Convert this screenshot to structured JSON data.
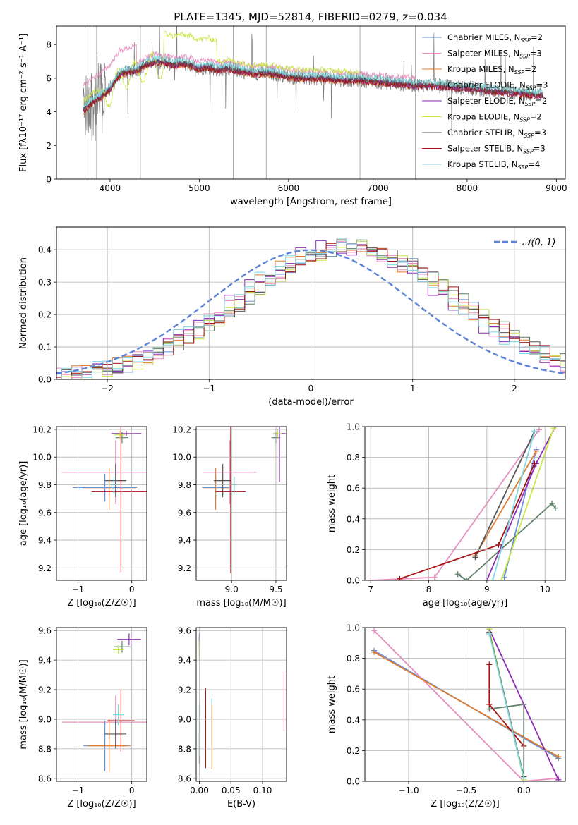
{
  "title": "PLATE=1345, MJD=52814, FIBERID=0279, z=0.034",
  "series_colors": {
    "Chabrier MILES": "#6b8fd6",
    "Salpeter MILES": "#e88fc0",
    "Kroupa MILES": "#e07a2c",
    "Chabrier ELODIE": "#5f7f66",
    "Salpeter ELODIE": "#8e2bb3",
    "Kroupa ELODIE": "#c9e84a",
    "Chabrier STELIB": "#555555",
    "Salpeter STELIB": "#a31515",
    "Kroupa STELIB": "#7dd8e0"
  },
  "chart_data": [
    {
      "id": "spectrum",
      "type": "line",
      "title": "PLATE=1345, MJD=52814, FIBERID=0279, z=0.034",
      "xlabel": "wavelength [Angstrom, rest frame]",
      "ylabel": "Flux [fλ10⁻¹⁷ erg cm⁻² s⁻¹ A⁻¹]",
      "xlim": [
        3400,
        9100
      ],
      "ylim": [
        0,
        9.1
      ],
      "xticks": [
        "4000",
        "5000",
        "6000",
        "7000",
        "8000",
        "9000"
      ],
      "yticks": [
        "0",
        "2",
        "4",
        "6",
        "8"
      ],
      "xtick_values": [
        4000,
        5000,
        6000,
        7000,
        8000,
        9000
      ],
      "ytick_values": [
        0,
        2,
        4,
        6,
        8
      ],
      "legend": {
        "placement": "top-right",
        "entries": [
          {
            "name": "Chabrier MILES",
            "ssp": "2"
          },
          {
            "name": "Salpeter MILES",
            "ssp": "3"
          },
          {
            "name": "Kroupa MILES",
            "ssp": "2"
          },
          {
            "name": "Chabrier ELODIE",
            "ssp": "3"
          },
          {
            "name": "Salpeter ELODIE",
            "ssp": "2"
          },
          {
            "name": "Kroupa ELODIE",
            "ssp": "2"
          },
          {
            "name": "Chabrier STELIB",
            "ssp": "3"
          },
          {
            "name": "Salpeter STELIB",
            "ssp": "3"
          },
          {
            "name": "Kroupa STELIB",
            "ssp": "4"
          }
        ],
        "ssp_prefix": "N",
        "ssp_sub": "SSP"
      },
      "continuum": [
        [
          3700,
          4.1
        ],
        [
          3800,
          4.6
        ],
        [
          3900,
          4.9
        ],
        [
          4000,
          5.4
        ],
        [
          4100,
          6.2
        ],
        [
          4200,
          6.4
        ],
        [
          4300,
          6.5
        ],
        [
          4400,
          6.8
        ],
        [
          4500,
          7.0
        ],
        [
          4600,
          7.0
        ],
        [
          4700,
          6.8
        ],
        [
          4800,
          6.9
        ],
        [
          4900,
          6.8
        ],
        [
          5000,
          6.6
        ],
        [
          5100,
          6.7
        ],
        [
          5200,
          6.5
        ],
        [
          5300,
          6.6
        ],
        [
          5400,
          6.5
        ],
        [
          5500,
          6.4
        ],
        [
          5600,
          6.3
        ],
        [
          5800,
          6.3
        ],
        [
          6000,
          6.1
        ],
        [
          6200,
          6.0
        ],
        [
          6400,
          6.0
        ],
        [
          6600,
          5.9
        ],
        [
          6800,
          5.9
        ],
        [
          7000,
          5.8
        ],
        [
          7200,
          5.7
        ],
        [
          7400,
          5.6
        ],
        [
          7600,
          5.6
        ],
        [
          7800,
          5.5
        ],
        [
          8000,
          5.4
        ],
        [
          8200,
          5.3
        ],
        [
          8400,
          5.2
        ],
        [
          8600,
          5.1
        ],
        [
          8800,
          5.0
        ]
      ],
      "model_ranges": [
        [
          3700,
          7420
        ],
        [
          3700,
          7420
        ],
        [
          3700,
          7420
        ],
        [
          3700,
          8850
        ],
        [
          3700,
          8850
        ],
        [
          3700,
          6800
        ],
        [
          3700,
          8850
        ],
        [
          3700,
          8850
        ],
        [
          3700,
          8850
        ]
      ]
    },
    {
      "id": "residual_hist",
      "type": "line",
      "xlabel": "(data-model)/error",
      "ylabel": "Normed distribution",
      "xlim": [
        -2.5,
        2.5
      ],
      "ylim": [
        0,
        0.47
      ],
      "xticks": [
        "−2",
        "−1",
        "0",
        "1",
        "2"
      ],
      "yticks": [
        "0.0",
        "0.1",
        "0.2",
        "0.3",
        "0.4"
      ],
      "xtick_values": [
        -2,
        -1,
        0,
        1,
        2
      ],
      "ytick_values": [
        0,
        0.1,
        0.2,
        0.3,
        0.4
      ],
      "legend": {
        "placement": "top-right",
        "label": "𝒩(0, 1)"
      },
      "gaussian": {
        "mean": 0,
        "sigma": 1
      },
      "bin_width": 0.1,
      "hist_center_shift": 0.4,
      "hist_sigma": 1.05
    },
    {
      "id": "age_vs_Z",
      "type": "scatter",
      "xlabel": "Z [log₁₀(Z/Z☉)]",
      "ylabel": "age  [log₁₀(age/yr)]",
      "xlim": [
        -1.4,
        0.28
      ],
      "ylim": [
        9.11,
        10.22
      ],
      "xticks": [
        "−1",
        "0"
      ],
      "yticks": [
        "9.2",
        "9.4",
        "9.6",
        "9.8",
        "10.0",
        "10.2"
      ],
      "xtick_values": [
        -1,
        0
      ],
      "ytick_values": [
        9.2,
        9.4,
        9.6,
        9.8,
        10.0,
        10.2
      ],
      "points": [
        {
          "x": -0.5,
          "y": 9.78,
          "xerr": 0.6,
          "yerr": 0.1
        },
        {
          "x": -0.3,
          "y": 9.89,
          "xerr": 1.0,
          "yerr": 0.23
        },
        {
          "x": -0.42,
          "y": 9.77,
          "xerr": 0.5,
          "yerr": 0.15
        },
        {
          "x": -0.18,
          "y": 10.14,
          "xerr": 0.12,
          "yerr": 0.04
        },
        {
          "x": -0.1,
          "y": 10.17,
          "xerr": 0.28,
          "yerr": 0.02
        },
        {
          "x": -0.22,
          "y": 10.16,
          "xerr": 0.1,
          "yerr": 0.03
        },
        {
          "x": -0.3,
          "y": 9.83,
          "xerr": 0.2,
          "yerr": 0.12
        },
        {
          "x": -0.2,
          "y": 9.75,
          "xerr": 0.55,
          "yerr": 0.58
        },
        {
          "x": -0.33,
          "y": 9.8,
          "xerr": 0.1,
          "yerr": 0.06
        }
      ]
    },
    {
      "id": "age_vs_mass",
      "type": "scatter",
      "xlabel": "mass [log₁₀(M/M☉)]",
      "ylabel": "",
      "xlim": [
        8.6,
        9.62
      ],
      "ylim": [
        9.11,
        10.22
      ],
      "xticks": [
        "9.0",
        "9.5"
      ],
      "yticks": [
        "9.2",
        "9.4",
        "9.6",
        "9.8",
        "10.0",
        "10.2"
      ],
      "xtick_values": [
        9.0,
        9.5
      ],
      "ytick_values": [
        9.2,
        9.4,
        9.6,
        9.8,
        10.0,
        10.2
      ],
      "points": [
        {
          "x": 8.82,
          "y": 9.78,
          "xerr": 0.15,
          "yerr": 0.08
        },
        {
          "x": 8.98,
          "y": 9.89,
          "xerr": 0.3,
          "yerr": 0.23
        },
        {
          "x": 8.82,
          "y": 9.77,
          "xerr": 0.15,
          "yerr": 0.15
        },
        {
          "x": 9.5,
          "y": 10.14,
          "xerr": 0.05,
          "yerr": 0.04
        },
        {
          "x": 9.54,
          "y": 10.17,
          "xerr": 0.07,
          "yerr": 0.35
        },
        {
          "x": 9.52,
          "y": 10.17,
          "xerr": 0.05,
          "yerr": 0.03
        },
        {
          "x": 8.9,
          "y": 9.83,
          "xerr": 0.1,
          "yerr": 0.12
        },
        {
          "x": 8.99,
          "y": 9.75,
          "xerr": 0.17,
          "yerr": 0.59
        },
        {
          "x": 9.03,
          "y": 9.8,
          "xerr": 0.03,
          "yerr": 0.06
        }
      ]
    },
    {
      "id": "massweight_vs_age",
      "type": "line",
      "xlabel": "age  [log₁₀(age/yr)]",
      "ylabel": "mass weight",
      "xlim": [
        6.9,
        10.35
      ],
      "ylim": [
        0,
        1
      ],
      "xticks": [
        "7",
        "8",
        "9",
        "10"
      ],
      "yticks": [
        "0.0",
        "0.2",
        "0.4",
        "0.6",
        "0.8",
        "1.0"
      ],
      "xtick_values": [
        7,
        8,
        9,
        10
      ],
      "ytick_values": [
        0,
        0.2,
        0.4,
        0.6,
        0.8,
        1.0
      ],
      "series": [
        {
          "x": [
            9.3,
            9.85
          ],
          "y": [
            0.02,
            0.85
          ]
        },
        {
          "x": [
            7.0,
            8.1,
            9.9
          ],
          "y": [
            0.0,
            0.02,
            0.98
          ]
        },
        {
          "x": [
            8.8,
            9.85
          ],
          "y": [
            0.16,
            0.84
          ]
        },
        {
          "x": [
            8.5,
            8.65,
            10.12,
            10.18
          ],
          "y": [
            0.04,
            0.0,
            0.5,
            0.47
          ]
        },
        {
          "x": [
            9.0,
            9.85,
            10.18
          ],
          "y": [
            0.0,
            0.76,
            1.0
          ]
        },
        {
          "x": [
            9.25,
            10.15
          ],
          "y": [
            0.0,
            0.99
          ]
        },
        {
          "x": [
            8.8,
            9.82
          ],
          "y": [
            0.15,
            0.97
          ]
        },
        {
          "x": [
            7.5,
            9.2,
            9.82
          ],
          "y": [
            0.01,
            0.23,
            0.76
          ]
        },
        {
          "x": [
            9.1,
            9.82
          ],
          "y": [
            0.0,
            0.97
          ]
        }
      ]
    },
    {
      "id": "mass_vs_Z",
      "type": "scatter",
      "xlabel": "Z [log₁₀(Z/Z☉)]",
      "ylabel": "mass [log₁₀(M/M☉)]",
      "xlim": [
        -1.4,
        0.28
      ],
      "ylim": [
        8.58,
        9.62
      ],
      "xticks": [
        "−1",
        "0"
      ],
      "yticks": [
        "8.6",
        "8.8",
        "9.0",
        "9.2",
        "9.4",
        "9.6"
      ],
      "xtick_values": [
        -1,
        0
      ],
      "ytick_values": [
        8.6,
        8.8,
        9.0,
        9.2,
        9.4,
        9.6
      ],
      "points": [
        {
          "x": -0.5,
          "y": 8.82,
          "xerr": 0.4,
          "yerr": 0.17
        },
        {
          "x": -0.3,
          "y": 8.98,
          "xerr": 1.0,
          "yerr": 0.18
        },
        {
          "x": -0.42,
          "y": 8.82,
          "xerr": 0.4,
          "yerr": 0.18
        },
        {
          "x": -0.18,
          "y": 9.49,
          "xerr": 0.15,
          "yerr": 0.04
        },
        {
          "x": -0.05,
          "y": 9.54,
          "xerr": 0.22,
          "yerr": 0.04
        },
        {
          "x": -0.25,
          "y": 9.47,
          "xerr": 0.1,
          "yerr": 0.03
        },
        {
          "x": -0.3,
          "y": 8.9,
          "xerr": 0.2,
          "yerr": 0.1
        },
        {
          "x": -0.2,
          "y": 8.99,
          "xerr": 0.25,
          "yerr": 0.21
        },
        {
          "x": -0.25,
          "y": 9.03,
          "xerr": 0.1,
          "yerr": 0.07
        }
      ]
    },
    {
      "id": "mass_vs_ebv",
      "type": "scatter",
      "xlabel": "E(B-V)",
      "ylabel": "",
      "xlim": [
        -0.005,
        0.138
      ],
      "ylim": [
        8.58,
        9.62
      ],
      "xticks": [
        "0.00",
        "0.05",
        "0.10"
      ],
      "yticks": [
        "8.6",
        "8.8",
        "9.0",
        "9.2",
        "9.4",
        "9.6"
      ],
      "xtick_values": [
        0.0,
        0.05,
        0.1
      ],
      "ytick_values": [
        8.6,
        8.8,
        9.0,
        9.2,
        9.4,
        9.6
      ],
      "points": [
        {
          "x": 0.02,
          "y": 8.98,
          "xerr": 0,
          "yerr": 0.16
        },
        {
          "x": 0.134,
          "y": 9.12,
          "xerr": 0,
          "yerr": 0.2
        },
        {
          "x": 0.02,
          "y": 8.88,
          "xerr": 0,
          "yerr": 0.22
        },
        {
          "x": 0.0,
          "y": 9.49,
          "xerr": 0,
          "yerr": 0.06
        },
        {
          "x": 0.0,
          "y": 9.54,
          "xerr": 0,
          "yerr": 0.04
        },
        {
          "x": 0.0,
          "y": 9.47,
          "xerr": 0,
          "yerr": 0.06
        },
        {
          "x": 0.0,
          "y": 8.8,
          "xerr": 0,
          "yerr": 0.1
        },
        {
          "x": 0.01,
          "y": 8.94,
          "xerr": 0,
          "yerr": 0.27
        },
        {
          "x": 0.0,
          "y": 8.93,
          "xerr": 0,
          "yerr": 0.18
        }
      ]
    },
    {
      "id": "massweight_vs_Z",
      "type": "line",
      "xlabel": "Z [log₁₀(Z/Z☉)]",
      "ylabel": "mass weight",
      "xlim": [
        -1.38,
        0.36
      ],
      "ylim": [
        0,
        1
      ],
      "xticks": [
        "−1.0",
        "−0.5",
        "0.0"
      ],
      "yticks": [
        "0.0",
        "0.2",
        "0.4",
        "0.6",
        "0.8",
        "1.0"
      ],
      "xtick_values": [
        -1.0,
        -0.5,
        0.0
      ],
      "ytick_values": [
        0,
        0.2,
        0.4,
        0.6,
        0.8,
        1.0
      ],
      "series": [
        {
          "x": [
            -1.3,
            0.3
          ],
          "y": [
            0.85,
            0.15
          ]
        },
        {
          "x": [
            -1.3,
            0.0,
            0.3
          ],
          "y": [
            0.98,
            0.0,
            0.02
          ]
        },
        {
          "x": [
            -1.3,
            0.3
          ],
          "y": [
            0.84,
            0.16
          ]
        },
        {
          "x": [
            -0.3,
            0.0,
            0.0
          ],
          "y": [
            0.47,
            0.5,
            0.03
          ]
        },
        {
          "x": [
            -0.3,
            0.3
          ],
          "y": [
            0.99,
            0.01
          ]
        },
        {
          "x": [
            -0.3,
            0.0
          ],
          "y": [
            0.99,
            0.01
          ]
        },
        {
          "x": [
            -0.3,
            0.0
          ],
          "y": [
            0.97,
            0.03
          ]
        },
        {
          "x": [
            -0.3,
            -0.3,
            0.0
          ],
          "y": [
            0.76,
            0.5,
            0.23
          ]
        },
        {
          "x": [
            -0.3,
            0.0
          ],
          "y": [
            0.96,
            0.02
          ]
        }
      ]
    }
  ]
}
